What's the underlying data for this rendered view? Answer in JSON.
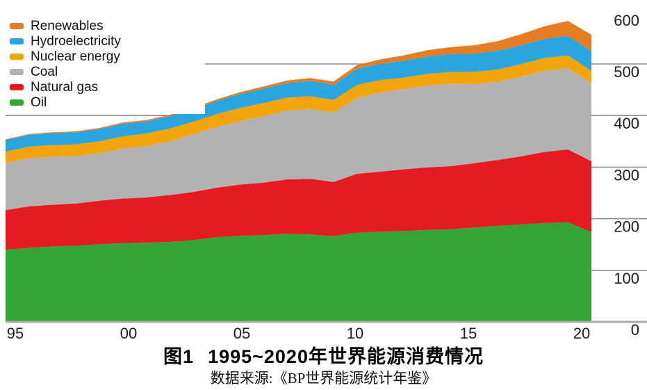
{
  "figure": {
    "caption_label": "图1",
    "caption_text": "1995~2020年世界能源消费情况",
    "source": "数据来源:《BP世界能源统计年鉴》"
  },
  "chart_data": {
    "type": "area",
    "stacked": true,
    "title": "图1 1995~2020年世界能源消费情况",
    "xlabel": "",
    "ylabel": "",
    "ylim": [
      0,
      600
    ],
    "y_ticks": [
      0,
      100,
      200,
      300,
      400,
      500,
      600
    ],
    "gridlines_visible_at": [
      400,
      500
    ],
    "legend_position": "top-left",
    "x": [
      1995,
      1996,
      1997,
      1998,
      1999,
      2000,
      2001,
      2002,
      2003,
      2004,
      2005,
      2006,
      2007,
      2008,
      2009,
      2010,
      2011,
      2012,
      2013,
      2014,
      2015,
      2016,
      2017,
      2018,
      2019,
      2020
    ],
    "x_tick_labels": [
      {
        "year": 1995,
        "label": "95"
      },
      {
        "year": 2000,
        "label": "00"
      },
      {
        "year": 2005,
        "label": "05"
      },
      {
        "year": 2010,
        "label": "10"
      },
      {
        "year": 2015,
        "label": "15"
      },
      {
        "year": 2020,
        "label": "20"
      }
    ],
    "series": [
      {
        "name": "Oil",
        "color": "#33a537",
        "values": [
          140.0,
          143.1,
          146.5,
          147.5,
          150.5,
          152.6,
          153.5,
          155.0,
          158.3,
          164.0,
          166.7,
          168.2,
          170.6,
          169.6,
          166.1,
          173.0,
          174.6,
          176.3,
          178.2,
          179.7,
          183.0,
          186.0,
          189.0,
          191.5,
          193.0,
          173.7
        ]
      },
      {
        "name": "Natural gas",
        "color": "#e41b23",
        "values": [
          76.7,
          80.8,
          80.6,
          82.0,
          84.4,
          86.5,
          87.7,
          91.0,
          93.5,
          96.1,
          99.5,
          101.8,
          105.5,
          107.8,
          105.2,
          114.2,
          116.6,
          119.5,
          121.4,
          122.2,
          124.5,
          127.9,
          131.9,
          138.0,
          141.2,
          137.6
        ]
      },
      {
        "name": "Coal",
        "color": "#b4b2b0",
        "values": [
          91.4,
          93.4,
          93.5,
          92.0,
          92.0,
          97.0,
          99.5,
          104.0,
          112.0,
          117.5,
          122.9,
          128.5,
          133.5,
          135.5,
          134.5,
          147.0,
          153.5,
          155.5,
          158.5,
          159.5,
          153.4,
          151.5,
          154.5,
          157.5,
          157.6,
          151.4
        ]
      },
      {
        "name": "Nuclear energy",
        "color": "#f2a50a",
        "values": [
          21.8,
          22.4,
          22.2,
          22.6,
          23.3,
          23.8,
          24.4,
          24.6,
          24.0,
          25.0,
          25.5,
          25.6,
          25.0,
          24.8,
          24.3,
          25.2,
          24.0,
          22.4,
          22.6,
          23.0,
          23.7,
          24.0,
          24.3,
          24.6,
          24.9,
          24.0
        ]
      },
      {
        "name": "Hydroelectricity",
        "color": "#2aa5de",
        "values": [
          22.5,
          22.8,
          23.2,
          23.4,
          23.7,
          24.3,
          23.6,
          24.0,
          24.2,
          25.3,
          27.1,
          28.0,
          28.2,
          29.5,
          29.5,
          31.0,
          31.5,
          32.8,
          33.9,
          34.6,
          35.2,
          36.2,
          36.3,
          37.1,
          37.7,
          38.2
        ]
      },
      {
        "name": "Renewables",
        "color": "#e57d25",
        "values": [
          1.4,
          1.5,
          1.7,
          1.8,
          2.0,
          2.2,
          2.4,
          2.6,
          2.9,
          3.2,
          3.6,
          4.1,
          4.8,
          5.6,
          6.4,
          7.5,
          8.7,
          10.2,
          11.9,
          13.7,
          16.5,
          18.6,
          21.5,
          24.5,
          29.0,
          31.7
        ]
      }
    ],
    "legend_order_top_to_bottom": [
      "Renewables",
      "Hydroelectricity",
      "Nuclear energy",
      "Coal",
      "Natural gas",
      "Oil"
    ],
    "axis_text_color": "#1c1c1c",
    "grid_color": "#8c8c8c",
    "baseline_color": "#a9a9a9"
  }
}
